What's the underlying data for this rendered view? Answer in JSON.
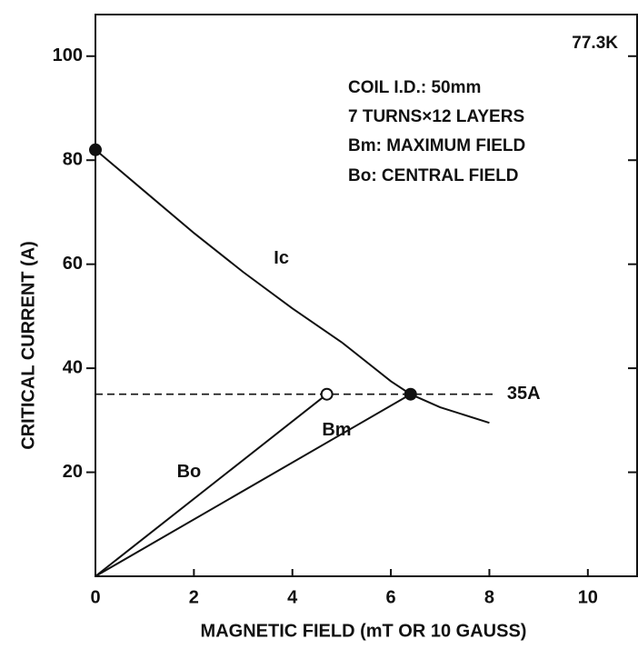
{
  "chart_data": {
    "type": "line",
    "xlabel": "MAGNETIC FIELD (mT OR 10 GAUSS)",
    "ylabel": "CRITICAL CURRENT (A)",
    "xlim": [
      0,
      11
    ],
    "ylim": [
      0,
      108
    ],
    "xticks": [
      0,
      2,
      4,
      6,
      8,
      10
    ],
    "yticks": [
      20,
      40,
      60,
      80,
      100
    ],
    "annotations": [
      "77.3K",
      "COIL I.D.: 50mm",
      "7 TURNS×12 LAYERS",
      "Bm: MAXIMUM FIELD",
      "Bo: CENTRAL FIELD"
    ],
    "hline": {
      "y": 35,
      "x": [
        0,
        8.1
      ],
      "label": "35A"
    },
    "series": [
      {
        "name": "Ic",
        "color": "#111111",
        "x": [
          0,
          1,
          2,
          3,
          4,
          5,
          6,
          6.4,
          7,
          8
        ],
        "values": [
          82,
          74,
          66,
          58.5,
          51.5,
          45,
          37.5,
          35,
          32.5,
          29.5
        ],
        "marker": "filled",
        "marker_at": "start"
      },
      {
        "name": "Bo",
        "color": "#111111",
        "x": [
          0,
          4.7
        ],
        "values": [
          0,
          35
        ],
        "marker": "open",
        "marker_at": "end"
      },
      {
        "name": "Bm",
        "color": "#111111",
        "x": [
          0,
          6.4
        ],
        "values": [
          0,
          35
        ],
        "marker": "filled",
        "marker_at": "end"
      }
    ]
  }
}
